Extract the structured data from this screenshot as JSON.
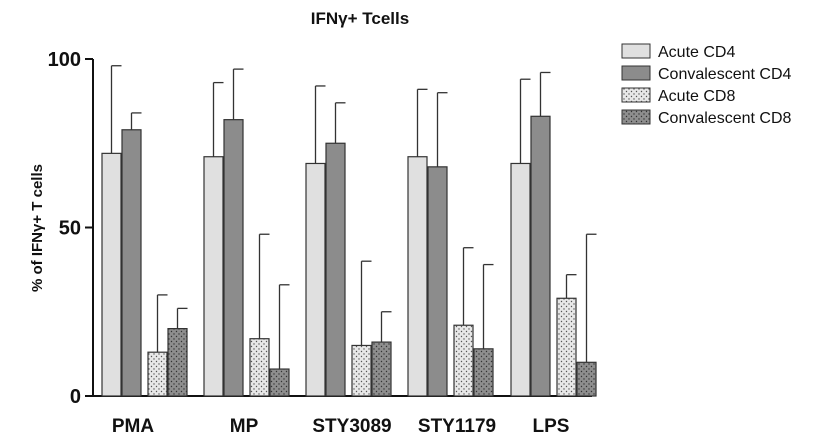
{
  "chart_data": {
    "type": "bar",
    "title": "IFNγ+ Tcells",
    "ylabel": "% of IFNγ+ T cells",
    "xlabel": "",
    "ylim": [
      0,
      100
    ],
    "yticks": [
      0,
      50,
      100
    ],
    "categories": [
      "PMA",
      "MP",
      "STY3089",
      "STY1179",
      "LPS"
    ],
    "series": [
      {
        "name": "Acute CD4",
        "color": "#e0e0e0",
        "pattern": "solid",
        "values": [
          72,
          71,
          69,
          71,
          69
        ],
        "error_upper": [
          98,
          93,
          92,
          91,
          94
        ]
      },
      {
        "name": "Convalescent CD4",
        "color": "#8c8c8c",
        "pattern": "solid",
        "values": [
          79,
          82,
          75,
          68,
          83
        ],
        "error_upper": [
          84,
          97,
          87,
          90,
          96
        ]
      },
      {
        "name": "Acute CD8",
        "color": "#e6e6e6",
        "pattern": "dots",
        "values": [
          13,
          17,
          15,
          21,
          29
        ],
        "error_upper": [
          30,
          48,
          40,
          44,
          36
        ]
      },
      {
        "name": "Convalescent CD8",
        "color": "#8c8c8c",
        "pattern": "dots",
        "values": [
          20,
          8,
          16,
          14,
          10
        ],
        "error_upper": [
          26,
          33,
          25,
          39,
          48
        ]
      }
    ],
    "grid": false,
    "legend_position": "top-right"
  }
}
